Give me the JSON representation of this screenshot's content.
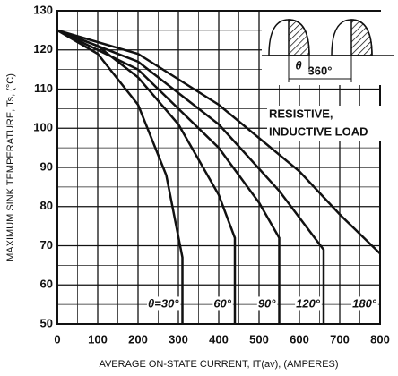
{
  "chart_data": {
    "type": "line",
    "x_label": "AVERAGE ON-STATE CURRENT, IT(av), (AMPERES)",
    "y_label": "MAXIMUM SINK TEMPERATURE, Ts, (°C)",
    "xlim": [
      0,
      800
    ],
    "xticks": [
      0,
      100,
      200,
      300,
      400,
      500,
      600,
      700,
      800
    ],
    "ylim": [
      50,
      130
    ],
    "yticks": [
      50,
      60,
      70,
      80,
      90,
      100,
      110,
      120,
      130
    ],
    "grid": true,
    "color": "#111111",
    "series": [
      {
        "name": "θ=30°",
        "color": "#111111",
        "x": [
          0,
          100,
          200,
          270,
          310,
          310
        ],
        "values": [
          125,
          119,
          106,
          88,
          67,
          50
        ]
      },
      {
        "name": "60°",
        "color": "#111111",
        "x": [
          0,
          100,
          200,
          300,
          400,
          440,
          440
        ],
        "values": [
          125,
          121,
          113,
          101,
          83,
          72,
          50
        ]
      },
      {
        "name": "90°",
        "color": "#111111",
        "x": [
          0,
          200,
          400,
          500,
          550,
          550
        ],
        "values": [
          125,
          115,
          95,
          81,
          72,
          50
        ]
      },
      {
        "name": "120°",
        "color": "#111111",
        "x": [
          0,
          200,
          400,
          550,
          660,
          660
        ],
        "values": [
          125,
          117,
          101,
          84,
          69,
          50
        ]
      },
      {
        "name": "180°",
        "color": "#111111",
        "x": [
          0,
          200,
          400,
          600,
          700,
          800
        ],
        "values": [
          125,
          119,
          106,
          89,
          78,
          68
        ]
      }
    ],
    "annotations": [
      "RESISTIVE,",
      "INDUCTIVE LOAD",
      "θ",
      "360°"
    ]
  }
}
